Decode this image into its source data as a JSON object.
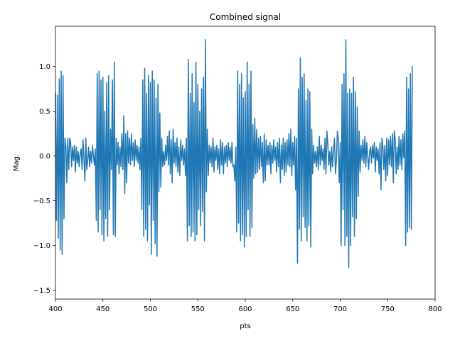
{
  "chart_data": {
    "type": "line",
    "title": "Combined signal",
    "xlabel": "pts",
    "ylabel": "Mag.",
    "xlim": [
      400,
      800
    ],
    "ylim": [
      -1.6,
      1.45
    ],
    "xticks": [
      400,
      450,
      500,
      550,
      600,
      650,
      700,
      750,
      800
    ],
    "yticks": [
      -1.5,
      -1.0,
      -0.5,
      0.0,
      0.5,
      1.0
    ],
    "grid": false,
    "color": "#1f77b4",
    "x_start": 400,
    "x_step": 1,
    "values": [
      0.7,
      -0.72,
      0.68,
      -0.92,
      0.86,
      -1.05,
      0.95,
      -1.1,
      0.9,
      -0.7,
      0.2,
      0.1,
      -0.3,
      0.2,
      -0.15,
      0.2,
      0.15,
      -0.12,
      0.1,
      -0.05,
      0.12,
      -0.18,
      0.1,
      -0.08,
      0.05,
      -0.12,
      0.02,
      0.08,
      -0.15,
      0.18,
      -0.02,
      -0.28,
      0.2,
      -0.15,
      -0.05,
      0.1,
      -0.12,
      0.05,
      -0.08,
      0.12,
      0.0,
      -0.1,
      0.08,
      -0.72,
      0.92,
      -0.85,
      0.95,
      -0.6,
      0.85,
      -0.88,
      0.88,
      -0.95,
      0.5,
      -0.7,
      0.82,
      -0.9,
      0.9,
      -0.6,
      0.3,
      -0.15,
      0.85,
      -0.88,
      1.05,
      -0.9,
      0.2,
      -0.1,
      0.15,
      -0.2,
      0.1,
      -0.12,
      0.25,
      -0.15,
      0.45,
      -0.42,
      0.25,
      -0.3,
      0.28,
      -0.08,
      0.2,
      -0.1,
      0.25,
      -0.05,
      0.15,
      -0.12,
      0.18,
      -0.05,
      0.12,
      -0.08,
      0.1,
      -0.15,
      0.2,
      -0.6,
      0.85,
      -0.9,
      0.98,
      -0.82,
      0.7,
      -0.95,
      0.9,
      -0.55,
      0.82,
      -1.1,
      0.95,
      -0.72,
      0.85,
      -0.98,
      0.65,
      -1.12,
      0.8,
      -0.4,
      0.48,
      -0.35,
      0.2,
      -0.12,
      0.05,
      -0.1,
      0.12,
      -0.05,
      0.22,
      -0.1,
      0.28,
      -0.2,
      0.18,
      -0.3,
      0.3,
      -0.08,
      0.15,
      -0.12,
      0.2,
      -0.18,
      0.1,
      -0.22,
      0.18,
      -0.05,
      0.12,
      -0.1,
      0.08,
      -0.22,
      0.2,
      -0.95,
      1.08,
      -0.78,
      0.7,
      -0.9,
      0.92,
      -0.85,
      0.6,
      -0.95,
      1.05,
      -0.88,
      0.8,
      -0.6,
      0.5,
      -0.78,
      0.75,
      -0.62,
      0.88,
      -0.95,
      1.3,
      -0.4,
      0.3,
      -0.22,
      0.12,
      -0.08,
      0.1,
      -0.12,
      0.2,
      -0.18,
      0.1,
      -0.05,
      0.12,
      -0.15,
      0.08,
      -0.2,
      0.18,
      -0.1,
      0.15,
      -0.2,
      0.1,
      -0.08,
      0.12,
      -0.12,
      0.15,
      -0.05,
      0.1,
      -0.08,
      0.15,
      -0.12,
      -0.1,
      -0.28,
      0.1,
      -0.85,
      0.95,
      -0.75,
      0.8,
      -0.95,
      0.92,
      -0.88,
      0.65,
      -1.02,
      0.72,
      -0.9,
      1.05,
      -0.6,
      0.8,
      -0.9,
      0.95,
      -0.8,
      0.35,
      -0.25,
      0.42,
      -0.2,
      0.3,
      -0.18,
      0.2,
      -0.15,
      0.22,
      -0.12,
      0.15,
      -0.3,
      0.25,
      -0.28,
      0.18,
      -0.1,
      0.12,
      -0.1,
      0.15,
      -0.2,
      0.12,
      -0.08,
      0.18,
      -0.05,
      0.1,
      -0.18,
      0.15,
      -0.12,
      0.2,
      -0.3,
      0.12,
      -0.15,
      0.2,
      -0.22,
      0.15,
      -0.18,
      0.18,
      -0.1,
      0.25,
      -0.12,
      0.3,
      -0.22,
      0.15,
      -0.1,
      0.22,
      -0.38,
      0.2,
      -1.2,
      0.75,
      -0.82,
      1.1,
      -0.95,
      0.88,
      -0.68,
      0.92,
      -0.8,
      0.62,
      -0.95,
      0.75,
      -0.78,
      0.72,
      -1.02,
      0.3,
      -0.2,
      0.12,
      -0.08,
      0.05,
      -0.12,
      0.1,
      -0.15,
      0.22,
      -0.1,
      0.12,
      -0.05,
      0.08,
      -0.15,
      0.2,
      -0.2,
      0.28,
      0.12,
      -0.1,
      0.05,
      -0.18,
      0.1,
      -0.12,
      0.08,
      0.2,
      -0.2,
      -0.05,
      0.28,
      0.18,
      -0.3,
      0.15,
      -1.0,
      0.8,
      -0.6,
      0.92,
      -1.0,
      1.3,
      -0.9,
      0.7,
      -1.25,
      0.75,
      -1.0,
      0.7,
      -0.68,
      0.88,
      -0.9,
      0.72,
      -0.7,
      0.55,
      -0.45,
      0.28,
      -0.18,
      0.12,
      -0.05,
      0.18,
      -0.08,
      0.22,
      -0.12,
      0.15,
      0.0,
      -0.15,
      0.05,
      0.1,
      -0.08,
      0.12,
      -0.02,
      0.15,
      -0.18,
      0.1,
      -0.05,
      0.08,
      -0.2,
      0.15,
      -0.38,
      0.2,
      0.1,
      -0.15,
      0.12,
      -0.28,
      0.2,
      -0.22,
      0.18,
      -0.1,
      0.22,
      -0.12,
      0.25,
      -0.3,
      0.28,
      0.18,
      -0.2,
      0.1,
      -0.15,
      0.22,
      -0.1,
      0.18,
      -0.15,
      0.25,
      -0.02,
      0.28,
      -1.0,
      0.88,
      -0.85,
      0.75,
      -0.8,
      0.92,
      -0.82,
      1.0
    ]
  }
}
